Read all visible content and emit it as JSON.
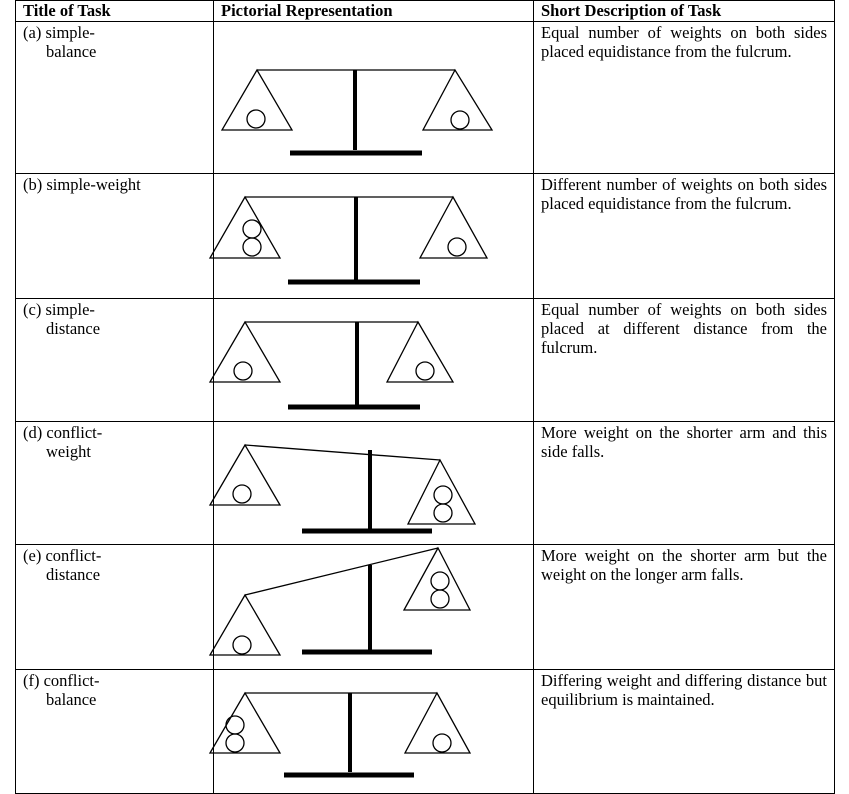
{
  "header": {
    "columns": [
      "Title of Task",
      "Pictorial Representation",
      "Short Description of Task"
    ]
  },
  "rows": [
    {
      "title": [
        "(a) simple-",
        "balance"
      ],
      "description": "Equal number of weights on both sides placed equidistance from the fulcrum."
    },
    {
      "title": [
        "(b) simple-weight"
      ],
      "description": "Different number of weights on both sides placed equidistance from the fulcrum."
    },
    {
      "title": [
        "(c) simple-",
        "distance"
      ],
      "description": "Equal number of weights on both sides placed at different distance from the fulcrum."
    },
    {
      "title": [
        "(d) conflict-",
        "weight"
      ],
      "description": "More weight on the shorter arm and this side falls."
    },
    {
      "title": [
        "(e) conflict-",
        "distance"
      ],
      "description": "More weight on the shorter arm but the weight on the longer arm falls."
    },
    {
      "title": [
        "(f) conflict-",
        "balance"
      ],
      "description": "Differing weight and differing distance but equilibrium is maintained."
    }
  ]
}
